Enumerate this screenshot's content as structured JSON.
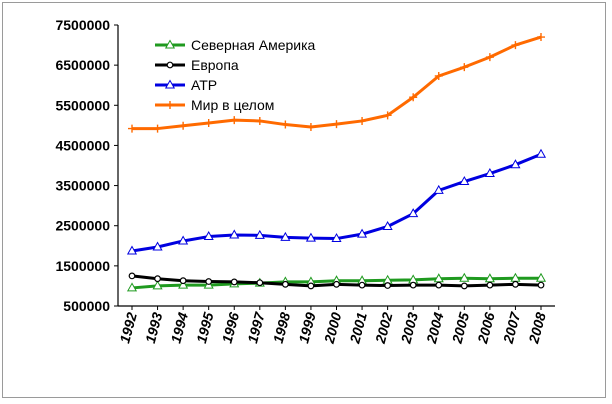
{
  "chart_data": {
    "type": "line",
    "title": "",
    "xlabel": "",
    "ylabel": "",
    "x": [
      "1992",
      "1993",
      "1994",
      "1995",
      "1996",
      "1997",
      "1998",
      "1999",
      "2000",
      "2001",
      "2002",
      "2003",
      "2004",
      "2005",
      "2006",
      "2007",
      "2008"
    ],
    "ylim": [
      500000,
      7500000
    ],
    "yticks": [
      "500000",
      "1500000",
      "2500000",
      "3500000",
      "4500000",
      "5500000",
      "6500000",
      "7500000"
    ],
    "ytick_values": [
      500000,
      1500000,
      2500000,
      3500000,
      4500000,
      5500000,
      6500000,
      7500000
    ],
    "grid": false,
    "legend_position": "top-left",
    "series": [
      {
        "name": "Северная Америка",
        "color": "#1f9a1f",
        "marker": "triangle",
        "values": [
          950000,
          1000000,
          1020000,
          1020000,
          1050000,
          1070000,
          1100000,
          1100000,
          1130000,
          1130000,
          1140000,
          1150000,
          1180000,
          1190000,
          1180000,
          1190000,
          1190000
        ]
      },
      {
        "name": "Европа",
        "color": "#000000",
        "marker": "circle",
        "values": [
          1250000,
          1180000,
          1130000,
          1110000,
          1100000,
          1080000,
          1040000,
          1000000,
          1040000,
          1020000,
          1010000,
          1020000,
          1020000,
          1000000,
          1020000,
          1040000,
          1020000
        ]
      },
      {
        "name": "АТР",
        "color": "#0000e0",
        "marker": "triangle",
        "values": [
          1870000,
          1970000,
          2120000,
          2230000,
          2270000,
          2260000,
          2210000,
          2190000,
          2180000,
          2290000,
          2480000,
          2800000,
          3380000,
          3600000,
          3800000,
          4020000,
          4280000
        ]
      },
      {
        "name": "Мир в целом",
        "color": "#ff6a00",
        "marker": "cross",
        "values": [
          4920000,
          4920000,
          4990000,
          5060000,
          5130000,
          5110000,
          5020000,
          4960000,
          5030000,
          5110000,
          5250000,
          5700000,
          6230000,
          6450000,
          6700000,
          7000000,
          7200000
        ]
      }
    ]
  }
}
